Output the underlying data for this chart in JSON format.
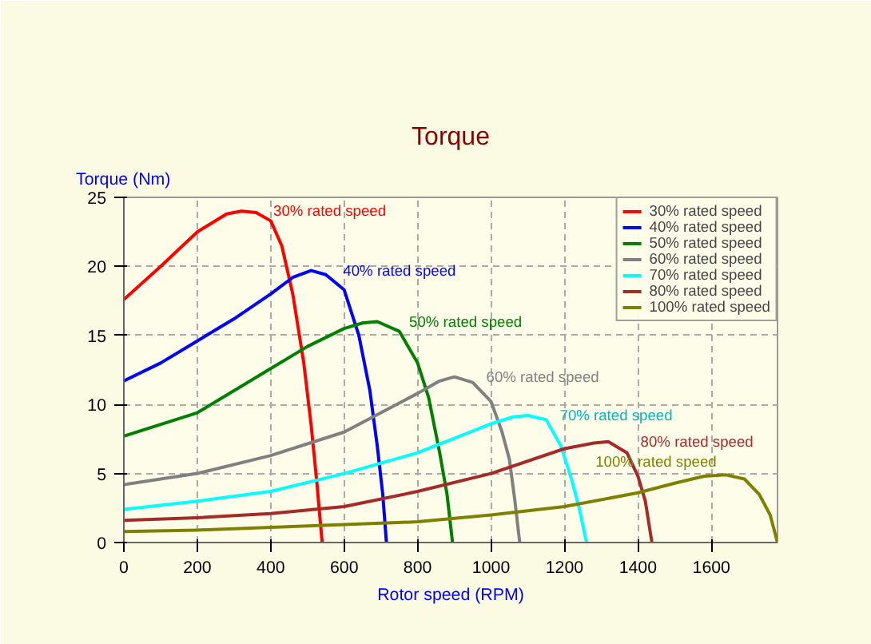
{
  "chart_data": {
    "type": "line",
    "title": "Torque",
    "xlabel": "Rotor speed (RPM)",
    "ylabel": "Torque (Nm)",
    "xlim": [
      0,
      1780
    ],
    "ylim": [
      0,
      25
    ],
    "xticks": [
      0,
      200,
      400,
      600,
      800,
      1000,
      1200,
      1400,
      1600
    ],
    "yticks": [
      0,
      5,
      10,
      15,
      20,
      25
    ],
    "grid": true,
    "legend": "top right",
    "marker": "none",
    "line_style": "solid",
    "series": [
      {
        "name": "30% rated speed",
        "color": "#ff0000",
        "x": [
          0,
          100,
          200,
          280,
          320,
          360,
          400,
          430,
          460,
          490,
          510,
          525,
          540
        ],
        "values": [
          17.6,
          20.0,
          22.5,
          23.8,
          24.0,
          23.9,
          23.3,
          21.5,
          18.0,
          13.0,
          8.5,
          4.5,
          0
        ]
      },
      {
        "name": "40% rated speed",
        "color": "#0000ff",
        "x": [
          0,
          100,
          200,
          300,
          400,
          460,
          510,
          550,
          600,
          640,
          670,
          690,
          705,
          715
        ],
        "values": [
          11.7,
          13.0,
          14.6,
          16.2,
          18.0,
          19.2,
          19.7,
          19.4,
          18.3,
          15.0,
          11.0,
          7.0,
          3.5,
          0
        ]
      },
      {
        "name": "50% rated speed",
        "color": "#008000",
        "x": [
          0,
          200,
          400,
          500,
          600,
          650,
          690,
          750,
          800,
          830,
          860,
          880,
          895
        ],
        "values": [
          7.7,
          9.4,
          12.6,
          14.2,
          15.5,
          15.9,
          16.0,
          15.3,
          13.0,
          10.5,
          6.5,
          3.5,
          0
        ]
      },
      {
        "name": "60% rated speed",
        "color": "#808080",
        "x": [
          0,
          200,
          400,
          600,
          800,
          860,
          900,
          950,
          1000,
          1030,
          1050,
          1065,
          1078
        ],
        "values": [
          4.2,
          5.0,
          6.3,
          8.0,
          10.8,
          11.7,
          12.0,
          11.6,
          10.2,
          8.0,
          6.0,
          3.0,
          0
        ]
      },
      {
        "name": "70% rated speed",
        "color": "#00ffff",
        "x": [
          0,
          200,
          400,
          600,
          800,
          1000,
          1060,
          1100,
          1150,
          1190,
          1220,
          1240,
          1260
        ],
        "values": [
          2.4,
          3.0,
          3.7,
          5.0,
          6.5,
          8.6,
          9.1,
          9.2,
          8.9,
          7.0,
          4.5,
          2.5,
          0
        ]
      },
      {
        "name": "80% rated speed",
        "color": "#a52a2a",
        "x": [
          0,
          200,
          400,
          600,
          800,
          1000,
          1200,
          1280,
          1320,
          1370,
          1400,
          1420,
          1438
        ],
        "values": [
          1.6,
          1.8,
          2.1,
          2.6,
          3.7,
          5.0,
          6.8,
          7.2,
          7.3,
          6.5,
          4.8,
          3.0,
          0
        ]
      },
      {
        "name": "100% rated speed",
        "color": "#808000",
        "x": [
          0,
          200,
          400,
          600,
          800,
          1000,
          1200,
          1400,
          1500,
          1580,
          1640,
          1690,
          1730,
          1760,
          1780
        ],
        "values": [
          0.8,
          0.9,
          1.1,
          1.3,
          1.5,
          2.0,
          2.6,
          3.6,
          4.3,
          4.8,
          4.9,
          4.6,
          3.5,
          2.0,
          0
        ]
      }
    ],
    "annotations": [
      "30% rated speed",
      "40% rated speed",
      "50% rated speed",
      "60% rated speed",
      "70% rated speed",
      "80% rated speed",
      "100% rated speed"
    ]
  }
}
